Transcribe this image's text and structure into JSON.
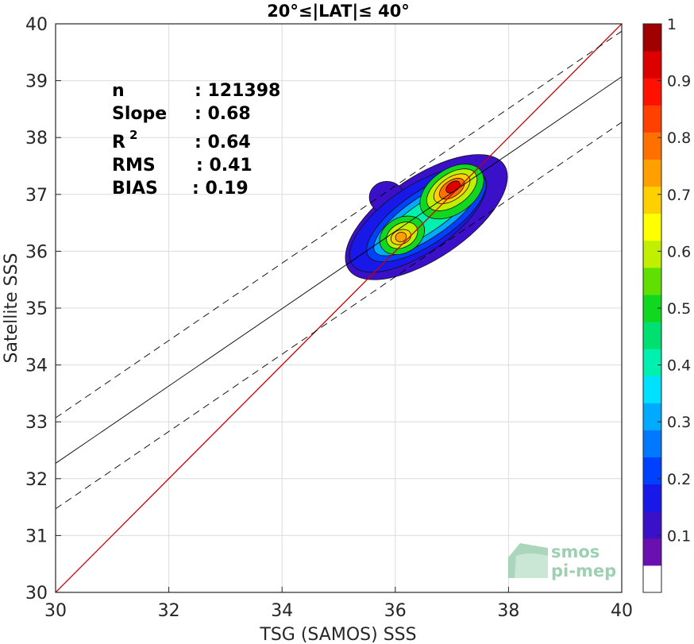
{
  "chart_data": {
    "type": "heatmap",
    "subtype": "density scatter (filled contours)",
    "title": "20°≤|LAT|≤ 40°",
    "xlabel": "TSG (SAMOS) SSS",
    "ylabel": "Satellite SSS",
    "xlim": [
      30,
      40
    ],
    "ylim": [
      30,
      40
    ],
    "x_ticks": [
      "30",
      "32",
      "34",
      "36",
      "38",
      "40"
    ],
    "y_ticks": [
      "30",
      "31",
      "32",
      "33",
      "34",
      "35",
      "36",
      "37",
      "38",
      "39",
      "40"
    ],
    "grid": true,
    "stats": [
      {
        "label": "n",
        "value": ": 121398"
      },
      {
        "label": "Slope",
        "value": ": 0.68"
      },
      {
        "label": "R",
        "sup": "2",
        "value": ": 0.64"
      },
      {
        "label": "RMS",
        "value": ": 0.41"
      },
      {
        "label": "BIAS",
        "value": ": 0.19"
      }
    ],
    "lines": {
      "identity": {
        "from": [
          30,
          30
        ],
        "to": [
          40,
          40
        ],
        "color": "#cc0000"
      },
      "fit": {
        "slope": 0.68,
        "intercept_at_30": 32.27
      },
      "fit_upper": {
        "slope": 0.68,
        "intercept_at_30": 33.07
      },
      "fit_lower": {
        "slope": 0.68,
        "intercept_at_30": 31.47
      }
    },
    "density_peaks": [
      {
        "x": 37.0,
        "y": 37.1,
        "level": 0.95
      },
      {
        "x": 36.1,
        "y": 36.25,
        "level": 0.75
      }
    ],
    "colorbar": {
      "range": [
        0,
        1
      ],
      "ticks": [
        "0.1",
        "0.2",
        "0.3",
        "0.4",
        "0.5",
        "0.6",
        "0.7",
        "0.8",
        "0.9",
        "1"
      ],
      "colors": [
        "#ffffff",
        "#6a0fb0",
        "#3a10c8",
        "#1818e8",
        "#0040ff",
        "#0078ff",
        "#00aaff",
        "#00e0ff",
        "#00f0b0",
        "#00e070",
        "#10d820",
        "#60e000",
        "#c0f000",
        "#ffff00",
        "#ffd000",
        "#ffa000",
        "#ff7000",
        "#ff4000",
        "#ff1000",
        "#dd0000",
        "#a00000"
      ]
    }
  },
  "logo": {
    "line1": "smos",
    "line2": "pi-mep"
  }
}
